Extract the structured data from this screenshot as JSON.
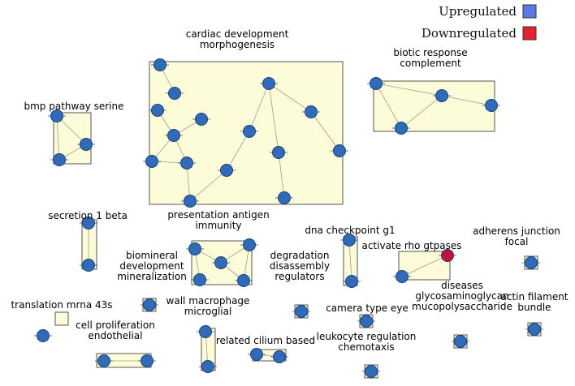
{
  "legend": {
    "upregulated": "Upregulated",
    "downregulated": "Downregulated",
    "up_color": "#5a78e6",
    "down_color": "#e8202e"
  },
  "colors": {
    "node_up": "#2f6bbb",
    "node_down": "#c2123a",
    "cluster_fill": "#fdfcd8"
  },
  "clusters": [
    {
      "id": "cardiac",
      "label": [
        "cardiac development",
        "morphogenesis"
      ]
    },
    {
      "id": "biotic",
      "label": [
        "biotic response",
        "complement"
      ]
    },
    {
      "id": "bmp",
      "label": [
        "bmp pathway serine"
      ]
    },
    {
      "id": "secretion",
      "label": [
        "secretion 1 beta"
      ]
    },
    {
      "id": "presentation",
      "label": [
        "presentation antigen",
        "immunity"
      ]
    },
    {
      "id": "dna",
      "label": [
        "dna checkpoint g1"
      ]
    },
    {
      "id": "rho",
      "label": [
        "activate rho gtpases"
      ]
    },
    {
      "id": "adherens",
      "label": [
        "adherens junction",
        "focal"
      ]
    },
    {
      "id": "biomineral",
      "label": [
        "biomineral",
        "development",
        "mineralization"
      ]
    },
    {
      "id": "degradation",
      "label": [
        "degradation",
        "disassembly",
        "regulators"
      ]
    },
    {
      "id": "translation",
      "label": [
        "translation mrna 43s"
      ]
    },
    {
      "id": "wall",
      "label": [
        "wall macrophage",
        "microglial"
      ]
    },
    {
      "id": "camera",
      "label": [
        "camera type eye"
      ]
    },
    {
      "id": "diseases",
      "label": [
        "diseases",
        "glycosaminoglycan",
        "mucopolysaccharide"
      ]
    },
    {
      "id": "actin",
      "label": [
        "actin filament",
        "bundle"
      ]
    },
    {
      "id": "prolif",
      "label": [
        "cell proliferation",
        "endothelial"
      ]
    },
    {
      "id": "cilium",
      "label": [
        "related cilium based"
      ]
    },
    {
      "id": "leukocyte",
      "label": [
        "leukocyte regulation",
        "chemotaxis"
      ]
    }
  ]
}
